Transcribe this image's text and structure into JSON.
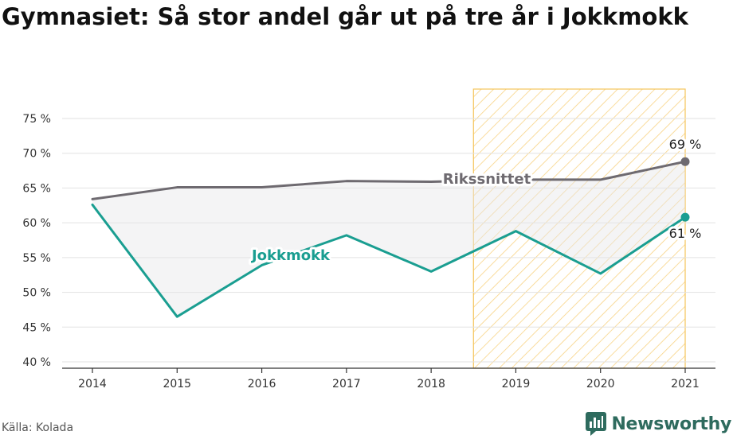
{
  "title": "Gymnasiet: Så stor andel går ut på tre år i Jokkmokk",
  "source": "Källa: Kolada",
  "brand": {
    "name": "Newsworthy",
    "icon": "newsworthy-logo-icon",
    "color": "#2e6b5e"
  },
  "chart_data": {
    "type": "line",
    "x": [
      "2014",
      "2015",
      "2016",
      "2017",
      "2018",
      "2019",
      "2020",
      "2021"
    ],
    "series": [
      {
        "name": "Rikssnittet",
        "color": "#6e6a70",
        "values": [
          63.4,
          65.1,
          65.1,
          66.0,
          65.9,
          66.2,
          66.2,
          68.8
        ],
        "end_label": "69 %"
      },
      {
        "name": "Jokkmokk",
        "color": "#1a9e91",
        "values": [
          62.6,
          46.5,
          53.9,
          58.2,
          53.0,
          58.8,
          52.7,
          60.8
        ],
        "end_label": "61 %"
      }
    ],
    "ylim": [
      40,
      75
    ],
    "yticks": [
      40,
      45,
      50,
      55,
      60,
      65,
      70,
      75
    ],
    "ytick_labels": [
      "40 %",
      "45 %",
      "50 %",
      "55 %",
      "60 %",
      "65 %",
      "70 %",
      "75 %"
    ],
    "highlight": {
      "from": 2018.5,
      "to": 2021,
      "color": "#f5c45a"
    },
    "grid": true
  }
}
